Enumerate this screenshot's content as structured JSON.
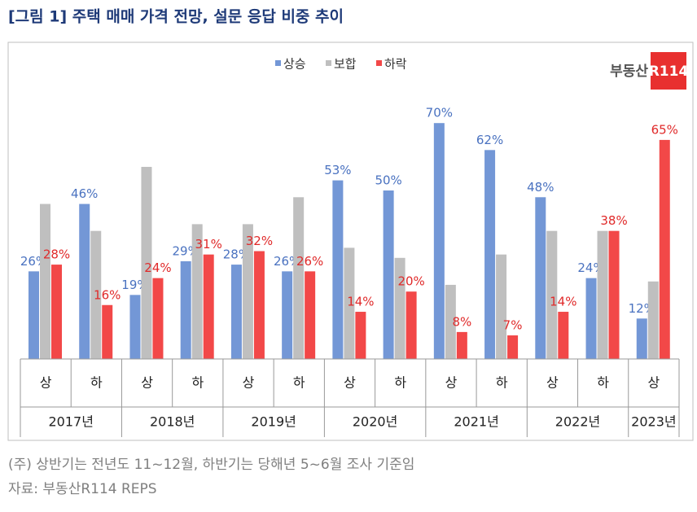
{
  "chart_data": {
    "type": "bar",
    "title": "[그림 1] 주택 매매 가격 전망, 설문 응답 비중 추이",
    "groups": [
      {
        "label": "2017년",
        "categories": [
          "상",
          "하"
        ]
      },
      {
        "label": "2018년",
        "categories": [
          "상",
          "하"
        ]
      },
      {
        "label": "2019년",
        "categories": [
          "상",
          "하"
        ]
      },
      {
        "label": "2020년",
        "categories": [
          "상",
          "하"
        ]
      },
      {
        "label": "2021년",
        "categories": [
          "상",
          "하"
        ]
      },
      {
        "label": "2022년",
        "categories": [
          "상",
          "하"
        ]
      },
      {
        "label": "2023년",
        "categories": [
          "상"
        ]
      }
    ],
    "series": [
      {
        "name": "상승",
        "color": "#7397d6",
        "label_color": "#4a72c0",
        "values": [
          26,
          46,
          19,
          29,
          28,
          26,
          53,
          50,
          70,
          62,
          48,
          24,
          12
        ],
        "value_labels": [
          "26%",
          "46%",
          "19%",
          "29%",
          "28%",
          "26%",
          "53%",
          "50%",
          "70%",
          "62%",
          "48%",
          "24%",
          "12%"
        ]
      },
      {
        "name": "보합",
        "color": "#bfbfbf",
        "values": [
          46,
          38,
          57,
          40,
          40,
          48,
          33,
          30,
          22,
          31,
          38,
          38,
          23
        ]
      },
      {
        "name": "하락",
        "color": "#f24848",
        "label_color": "#e02a2a",
        "values": [
          28,
          16,
          24,
          31,
          32,
          26,
          14,
          20,
          8,
          7,
          14,
          38,
          65
        ],
        "value_labels": [
          "28%",
          "16%",
          "24%",
          "31%",
          "32%",
          "26%",
          "14%",
          "20%",
          "8%",
          "7%",
          "14%",
          "38%",
          "65%"
        ]
      }
    ],
    "ylim": [
      0,
      90
    ],
    "logo": {
      "text": "부동산",
      "mark": "R114"
    },
    "notes": [
      "(주) 상반기는 전년도 11~12월, 하반기는 당해년 5~6월 조사 기준임",
      "자료: 부동산R114 REPS"
    ]
  }
}
